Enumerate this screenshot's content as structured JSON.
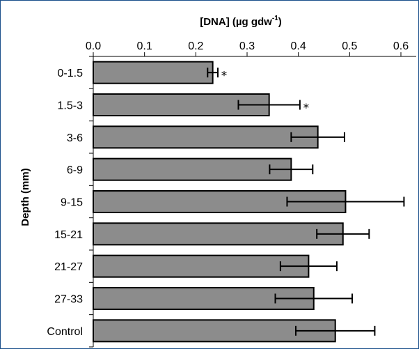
{
  "chart_data": {
    "type": "bar",
    "orientation": "horizontal",
    "xlabel_main": "[DNA] (µg gdw",
    "xlabel_sup": "-1",
    "xlabel_close": ")",
    "ylabel": "Depth (mm)",
    "xlim": [
      0,
      0.6
    ],
    "xticks": [
      "0.0",
      "0.1",
      "0.2",
      "0.3",
      "0.4",
      "0.5",
      "0.6"
    ],
    "x_axis_position": "top",
    "grid": false,
    "bar_color": "#8c8c8c",
    "categories": [
      "0-1.5",
      "1.5-3",
      "3-6",
      "6-9",
      "9-15",
      "15-21",
      "21-27",
      "27-33",
      "Control"
    ],
    "values": [
      0.233,
      0.343,
      0.438,
      0.386,
      0.492,
      0.487,
      0.42,
      0.43,
      0.472
    ],
    "errors": [
      0.01,
      0.06,
      0.052,
      0.042,
      0.114,
      0.051,
      0.055,
      0.075,
      0.077
    ],
    "markers": [
      "*",
      "*",
      "",
      "",
      "",
      "",
      "",
      "",
      ""
    ]
  }
}
